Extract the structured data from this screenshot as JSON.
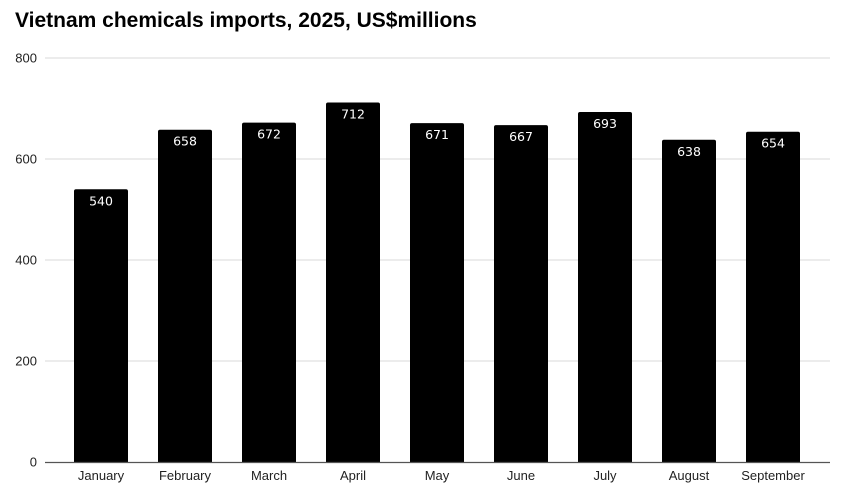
{
  "chart_data": {
    "type": "bar",
    "title": "Vietnam chemicals imports, 2025, US$millions",
    "xlabel": "",
    "ylabel": "",
    "categories": [
      "January",
      "February",
      "March",
      "April",
      "May",
      "June",
      "July",
      "August",
      "September"
    ],
    "values": [
      540,
      658,
      672,
      712,
      671,
      667,
      693,
      638,
      654
    ],
    "data_labels": [
      "540",
      "658",
      "672",
      "712",
      "671",
      "667",
      "693",
      "638",
      "654"
    ],
    "ylim": [
      0,
      800
    ],
    "yticks": [
      0,
      200,
      400,
      600,
      800
    ],
    "ytick_labels": [
      "0",
      "200",
      "400",
      "600",
      "800"
    ],
    "grid": true,
    "legend": "none",
    "colors": {
      "bar": "#000000",
      "grid": "#d9d9d9",
      "axis": "#555555",
      "data_label": "#ffffff"
    }
  }
}
